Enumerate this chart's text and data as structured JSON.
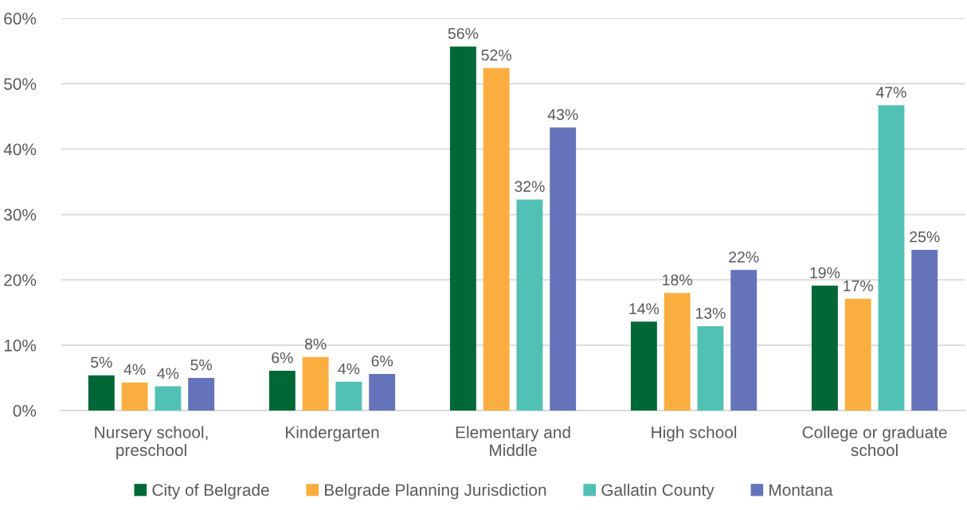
{
  "chart_data": {
    "type": "bar",
    "categories": [
      "Nursery school, preschool",
      "Kindergarten",
      "Elementary and Middle",
      "High school",
      "College or graduate school"
    ],
    "series": [
      {
        "name": "City of Belgrade",
        "color": "#006837",
        "values": [
          5.4,
          6.1,
          55.7,
          13.6,
          19.1
        ],
        "value_labels": [
          "5%",
          "6%",
          "56%",
          "14%",
          "19%"
        ]
      },
      {
        "name": "Belgrade Planning Jurisdiction",
        "color": "#fbae40",
        "values": [
          4.3,
          8.2,
          52.4,
          18.0,
          17.1
        ],
        "value_labels": [
          "4%",
          "8%",
          "52%",
          "18%",
          "17%"
        ]
      },
      {
        "name": "Gallatin County",
        "color": "#52c1b5",
        "values": [
          3.7,
          4.4,
          32.3,
          12.9,
          46.7
        ],
        "value_labels": [
          "4%",
          "4%",
          "32%",
          "13%",
          "47%"
        ]
      },
      {
        "name": "Montana",
        "color": "#6574ba",
        "values": [
          5.0,
          5.6,
          43.3,
          21.5,
          24.6
        ],
        "value_labels": [
          "5%",
          "6%",
          "43%",
          "22%",
          "25%"
        ]
      }
    ],
    "ylim": [
      0,
      60
    ],
    "yticks": [
      {
        "value": 0,
        "label": "0%"
      },
      {
        "value": 10,
        "label": "10%"
      },
      {
        "value": 20,
        "label": "20%"
      },
      {
        "value": 30,
        "label": "30%"
      },
      {
        "value": 40,
        "label": "40%"
      },
      {
        "value": 50,
        "label": "50%"
      },
      {
        "value": 60,
        "label": "60%"
      }
    ],
    "grid": "y",
    "legend": "bottom"
  }
}
